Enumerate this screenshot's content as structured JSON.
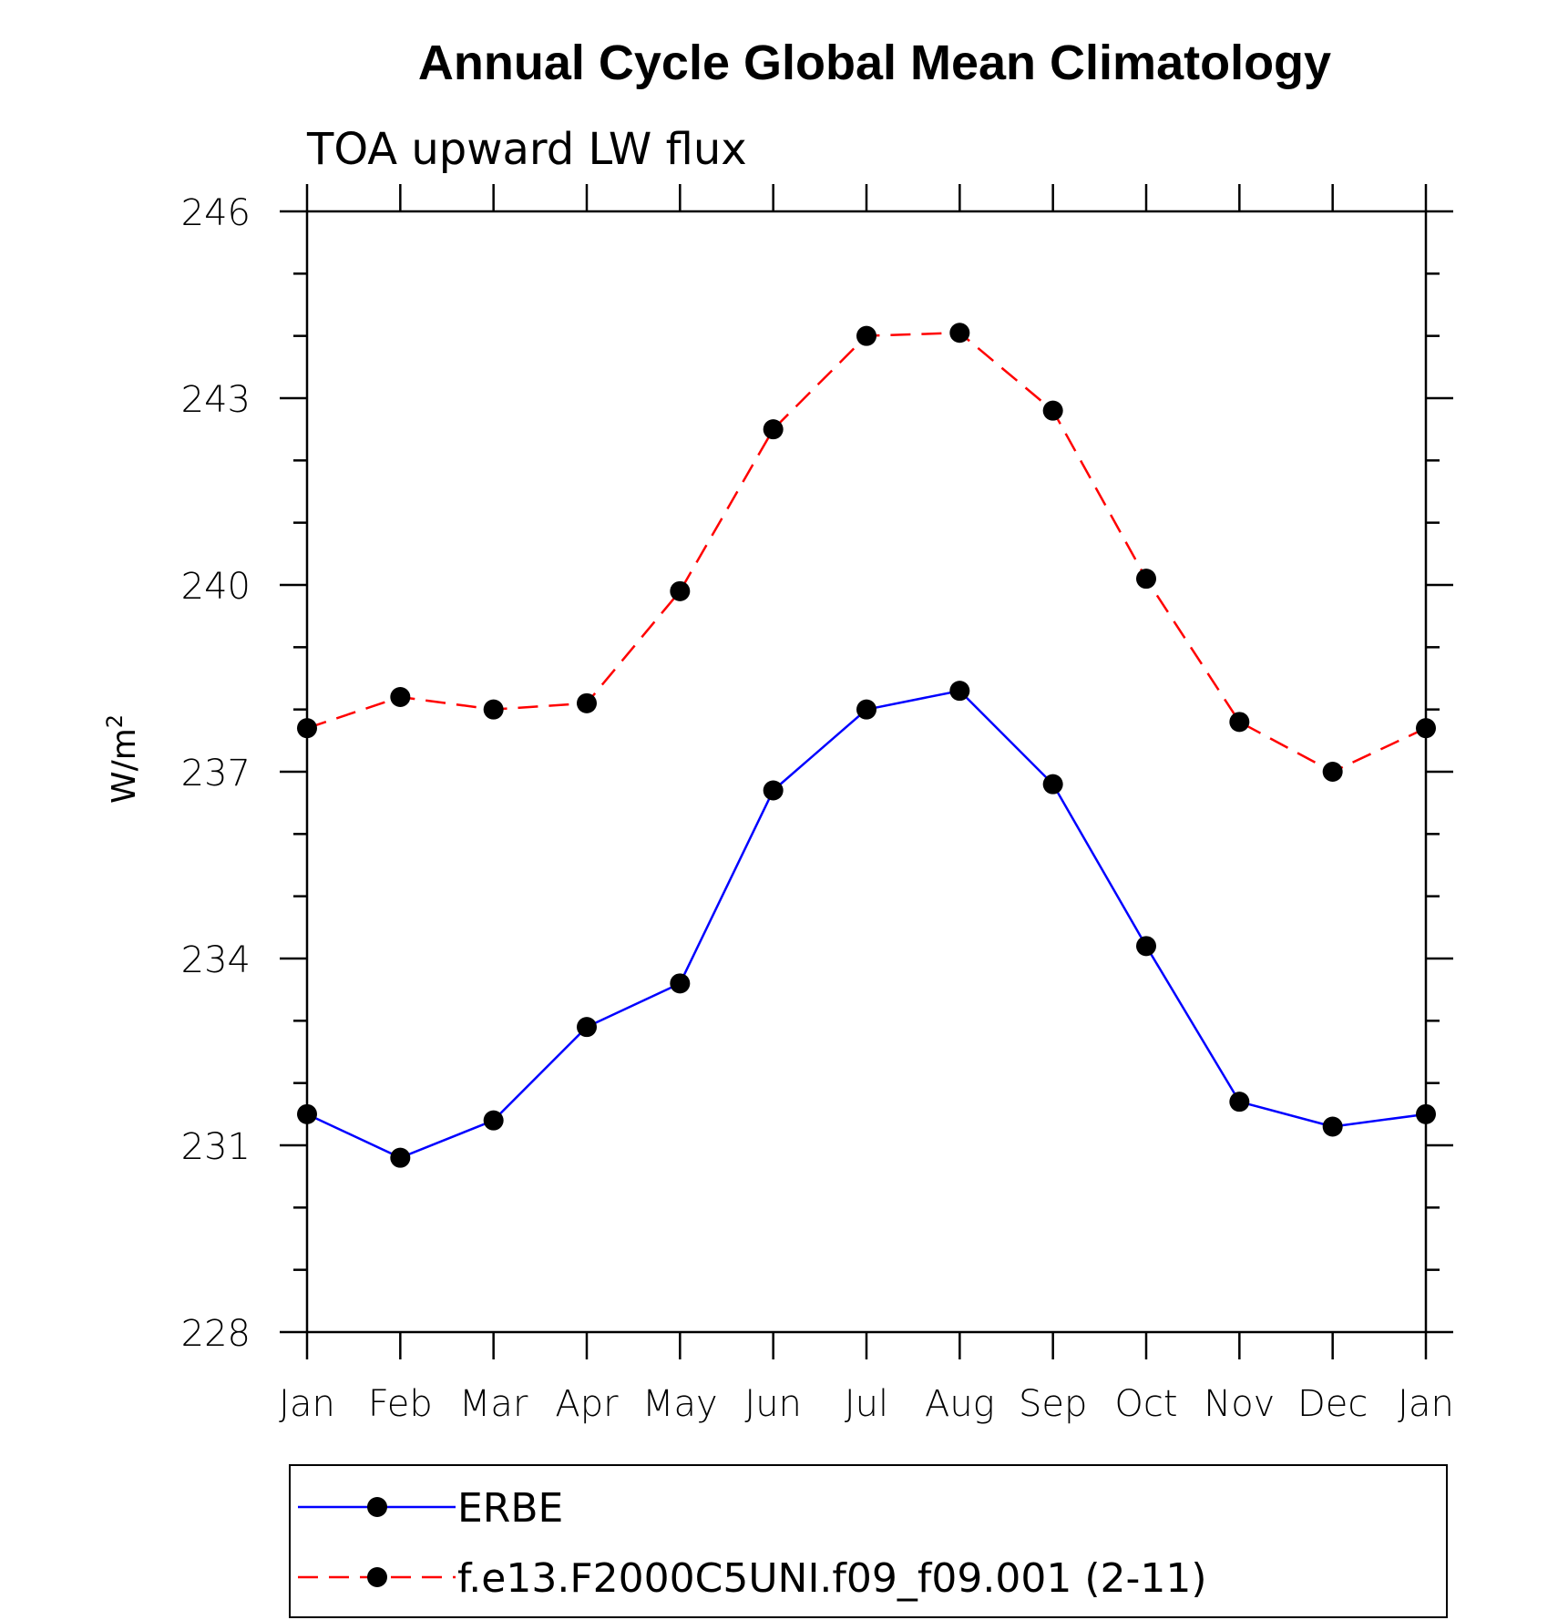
{
  "chart_data": {
    "type": "line",
    "title": "Annual Cycle Global Mean Climatology",
    "subtitle": "TOA upward LW flux",
    "ylabel_base": "W/m",
    "ylabel_sup": "2",
    "xlabel": "",
    "categories": [
      "Jan",
      "Feb",
      "Mar",
      "Apr",
      "May",
      "Jun",
      "Jul",
      "Aug",
      "Sep",
      "Oct",
      "Nov",
      "Dec",
      "Jan"
    ],
    "ylim": [
      228,
      246
    ],
    "yticks": [
      228,
      231,
      234,
      237,
      240,
      243,
      246
    ],
    "y_minor_step": 1,
    "grid": false,
    "legend_position": "bottom",
    "series": [
      {
        "name": "ERBE",
        "color": "#0000ff",
        "style": "solid",
        "marker": "filled-circle",
        "values": [
          231.5,
          230.8,
          231.4,
          232.9,
          233.6,
          236.7,
          238.0,
          238.3,
          236.8,
          234.2,
          231.7,
          231.3,
          231.5
        ]
      },
      {
        "name": "f.e13.F2000C5UNI.f09_f09.001 (2-11)",
        "color": "#ff0000",
        "style": "dashed",
        "marker": "filled-circle",
        "values": [
          237.7,
          238.2,
          238.0,
          238.1,
          239.9,
          242.5,
          244.0,
          244.05,
          242.8,
          240.1,
          237.8,
          237.0,
          237.7
        ]
      }
    ]
  }
}
